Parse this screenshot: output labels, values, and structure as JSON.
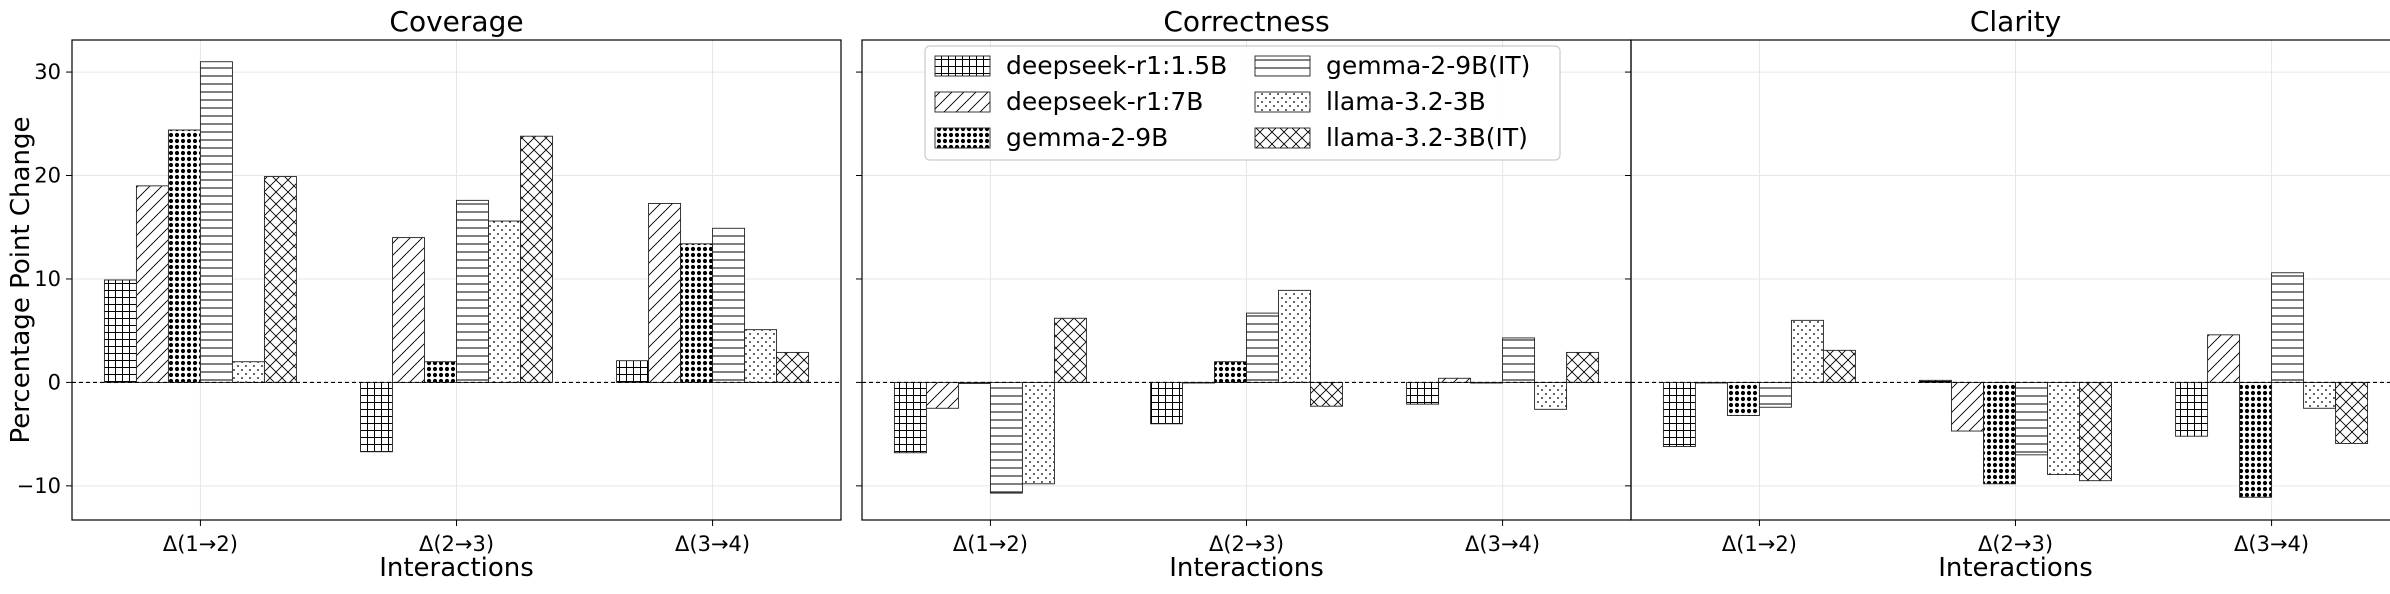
{
  "chart_data": {
    "type": "bar",
    "ylabel": "Percentage Point Change",
    "xlabel": "Interactions",
    "categories": [
      "Δ(1→2)",
      "Δ(2→3)",
      "Δ(3→4)"
    ],
    "ylim": [
      -13.3,
      33.1
    ],
    "yticks": [
      -10,
      0,
      10,
      20,
      30
    ],
    "grid": true,
    "legend_placement": "top (in Correctness panel)",
    "series_names": [
      "deepseek-r1:1.5B",
      "deepseek-r1:7B",
      "gemma-2-9B",
      "gemma-2-9B(IT)",
      "llama-3.2-3B",
      "llama-3.2-3B(IT)"
    ],
    "panels": [
      {
        "title": "Coverage",
        "series": [
          {
            "name": "deepseek-r1:1.5B",
            "values": [
              9.9,
              -6.7,
              2.1
            ]
          },
          {
            "name": "deepseek-r1:7B",
            "values": [
              19.0,
              14.0,
              17.3
            ]
          },
          {
            "name": "gemma-2-9B",
            "values": [
              24.4,
              2.0,
              13.4
            ]
          },
          {
            "name": "gemma-2-9B(IT)",
            "values": [
              31.0,
              17.6,
              14.9
            ]
          },
          {
            "name": "llama-3.2-3B",
            "values": [
              2.0,
              15.6,
              5.1
            ]
          },
          {
            "name": "llama-3.2-3B(IT)",
            "values": [
              19.9,
              23.8,
              2.9
            ]
          }
        ]
      },
      {
        "title": "Correctness",
        "series": [
          {
            "name": "deepseek-r1:1.5B",
            "values": [
              -6.8,
              -4.0,
              -2.1
            ]
          },
          {
            "name": "deepseek-r1:7B",
            "values": [
              -2.5,
              0.0,
              0.4
            ]
          },
          {
            "name": "gemma-2-9B",
            "values": [
              -0.1,
              2.0,
              0.0
            ]
          },
          {
            "name": "gemma-2-9B(IT)",
            "values": [
              -10.7,
              6.7,
              4.3
            ]
          },
          {
            "name": "llama-3.2-3B",
            "values": [
              -9.8,
              8.9,
              -2.6
            ]
          },
          {
            "name": "llama-3.2-3B(IT)",
            "values": [
              6.2,
              -2.3,
              2.9
            ]
          }
        ]
      },
      {
        "title": "Clarity",
        "series": [
          {
            "name": "deepseek-r1:1.5B",
            "values": [
              -6.2,
              0.2,
              -5.2
            ]
          },
          {
            "name": "deepseek-r1:7B",
            "values": [
              0.0,
              -4.7,
              4.6
            ]
          },
          {
            "name": "gemma-2-9B",
            "values": [
              -3.2,
              -9.8,
              -11.1
            ]
          },
          {
            "name": "gemma-2-9B(IT)",
            "values": [
              -2.4,
              -7.0,
              10.6
            ]
          },
          {
            "name": "llama-3.2-3B",
            "values": [
              6.0,
              -8.9,
              -2.5
            ]
          },
          {
            "name": "llama-3.2-3B(IT)",
            "values": [
              3.1,
              -9.5,
              -5.9
            ]
          }
        ]
      }
    ]
  }
}
